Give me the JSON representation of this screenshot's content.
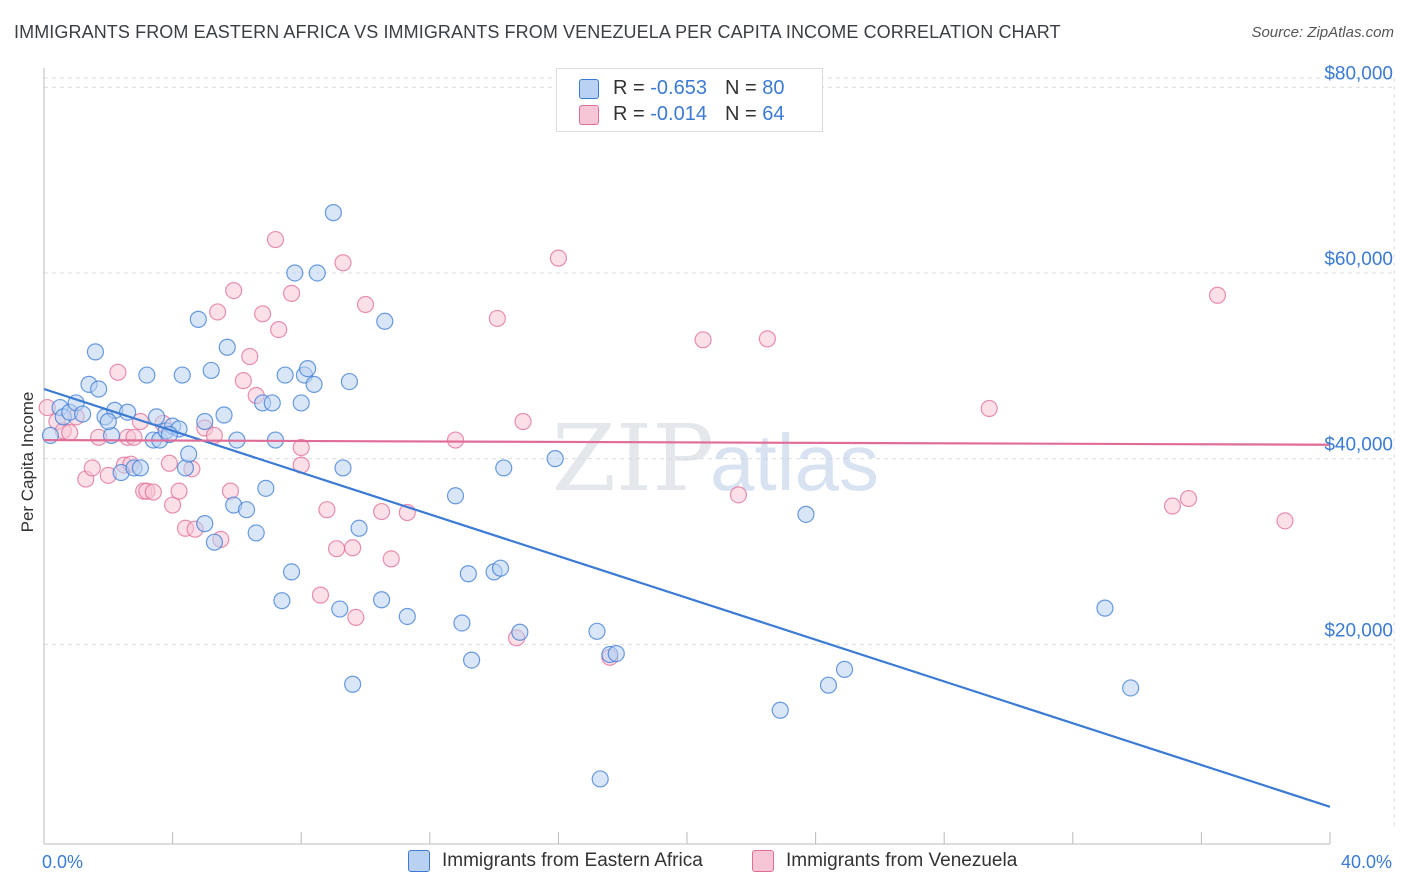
{
  "title": "IMMIGRANTS FROM EASTERN AFRICA VS IMMIGRANTS FROM VENEZUELA PER CAPITA INCOME CORRELATION CHART",
  "source": "Source: ZipAtlas.com",
  "watermark": {
    "zip": "ZIP",
    "atlas": "atlas"
  },
  "colors": {
    "blue": "#3b7bd4",
    "blue_fill": "#b9d2f3",
    "pink": "#e06c98",
    "pink_fill": "#f7c6d6",
    "grid": "#dcdcdc"
  },
  "legend_top": {
    "blue": {
      "r_label": "R = ",
      "r_value": "-0.653",
      "n_label": "N = ",
      "n_value": "80"
    },
    "pink": {
      "r_label": "R = ",
      "r_value": "-0.014",
      "n_label": "N = ",
      "n_value": "64"
    }
  },
  "chart_data": {
    "type": "scatter",
    "title": "IMMIGRANTS FROM EASTERN AFRICA VS IMMIGRANTS FROM VENEZUELA PER CAPITA INCOME CORRELATION CHART",
    "xlabel": "",
    "ylabel": "Per Capita Income",
    "xlim": [
      0,
      40
    ],
    "ylim": [
      0,
      81000
    ],
    "x_tick_labels": [
      "0.0%",
      "40.0%"
    ],
    "y_ticks": [
      20000,
      40000,
      60000,
      80000
    ],
    "y_tick_labels": [
      "$20,000",
      "$40,000",
      "$60,000",
      "$80,000"
    ],
    "grid": true,
    "legend_position": "top-center and bottom",
    "series": [
      {
        "name": "Immigrants from Eastern Africa",
        "color": "#3b7bd4",
        "trend": {
          "x": [
            0,
            40
          ],
          "y": [
            47500,
            2500
          ]
        },
        "points": [
          [
            0.2,
            42500
          ],
          [
            0.5,
            45500
          ],
          [
            0.6,
            44500
          ],
          [
            0.8,
            45000
          ],
          [
            1.0,
            46000
          ],
          [
            1.4,
            48000
          ],
          [
            1.6,
            51500
          ],
          [
            1.7,
            47500
          ],
          [
            1.9,
            44500
          ],
          [
            2.1,
            42500
          ],
          [
            2.2,
            45200
          ],
          [
            2.4,
            38500
          ],
          [
            2.6,
            45000
          ],
          [
            2.8,
            39000
          ],
          [
            3.0,
            39000
          ],
          [
            3.2,
            49000
          ],
          [
            3.4,
            42000
          ],
          [
            3.5,
            44500
          ],
          [
            3.6,
            42000
          ],
          [
            3.8,
            43000
          ],
          [
            4.0,
            43500
          ],
          [
            4.2,
            43200
          ],
          [
            4.3,
            49000
          ],
          [
            4.4,
            39000
          ],
          [
            4.5,
            40500
          ],
          [
            4.8,
            55000
          ],
          [
            5.0,
            44000
          ],
          [
            5.0,
            33000
          ],
          [
            5.2,
            49500
          ],
          [
            5.3,
            31000
          ],
          [
            5.6,
            44700
          ],
          [
            5.7,
            52000
          ],
          [
            5.9,
            35000
          ],
          [
            6.0,
            42000
          ],
          [
            6.3,
            34500
          ],
          [
            6.6,
            32000
          ],
          [
            6.8,
            46000
          ],
          [
            6.9,
            36800
          ],
          [
            7.1,
            46000
          ],
          [
            7.2,
            42000
          ],
          [
            7.4,
            24700
          ],
          [
            7.5,
            49000
          ],
          [
            7.7,
            27800
          ],
          [
            7.8,
            60000
          ],
          [
            8.0,
            46000
          ],
          [
            8.1,
            49000
          ],
          [
            8.2,
            49700
          ],
          [
            8.4,
            48000
          ],
          [
            8.5,
            60000
          ],
          [
            9.0,
            66500
          ],
          [
            9.2,
            23800
          ],
          [
            9.3,
            39000
          ],
          [
            9.5,
            48300
          ],
          [
            9.6,
            15700
          ],
          [
            9.8,
            32500
          ],
          [
            10.5,
            24800
          ],
          [
            10.6,
            54800
          ],
          [
            11.3,
            23000
          ],
          [
            12.8,
            36000
          ],
          [
            13.0,
            22300
          ],
          [
            13.2,
            27600
          ],
          [
            13.3,
            18300
          ],
          [
            14.0,
            27800
          ],
          [
            14.2,
            28200
          ],
          [
            14.3,
            39000
          ],
          [
            14.8,
            21300
          ],
          [
            15.9,
            40000
          ],
          [
            17.2,
            21400
          ],
          [
            17.6,
            18900
          ],
          [
            17.8,
            19000
          ],
          [
            17.3,
            5500
          ],
          [
            22.9,
            12900
          ],
          [
            23.7,
            34000
          ],
          [
            24.4,
            15600
          ],
          [
            24.9,
            17300
          ],
          [
            33.0,
            23900
          ],
          [
            33.8,
            15300
          ],
          [
            1.2,
            44800
          ],
          [
            2.0,
            44000
          ],
          [
            3.9,
            42600
          ]
        ]
      },
      {
        "name": "Immigrants from Venezuela",
        "color": "#e06c98",
        "trend": {
          "x": [
            0,
            40
          ],
          "y": [
            42000,
            41500
          ]
        },
        "points": [
          [
            0.1,
            45500
          ],
          [
            0.4,
            44000
          ],
          [
            0.6,
            43000
          ],
          [
            0.8,
            42800
          ],
          [
            1.0,
            44500
          ],
          [
            1.3,
            37800
          ],
          [
            1.5,
            39000
          ],
          [
            1.7,
            42300
          ],
          [
            2.0,
            38200
          ],
          [
            2.3,
            49300
          ],
          [
            2.5,
            39300
          ],
          [
            2.6,
            42300
          ],
          [
            2.7,
            39400
          ],
          [
            2.8,
            42300
          ],
          [
            3.0,
            44000
          ],
          [
            3.1,
            36500
          ],
          [
            3.2,
            36500
          ],
          [
            3.4,
            36400
          ],
          [
            3.7,
            43800
          ],
          [
            3.9,
            39500
          ],
          [
            4.0,
            35000
          ],
          [
            4.2,
            36500
          ],
          [
            4.4,
            32500
          ],
          [
            4.6,
            38900
          ],
          [
            4.7,
            32400
          ],
          [
            5.0,
            43300
          ],
          [
            5.3,
            42500
          ],
          [
            5.4,
            55800
          ],
          [
            5.5,
            31300
          ],
          [
            5.8,
            36500
          ],
          [
            5.9,
            58100
          ],
          [
            6.2,
            48400
          ],
          [
            6.4,
            51000
          ],
          [
            6.6,
            46800
          ],
          [
            6.8,
            55600
          ],
          [
            7.2,
            63600
          ],
          [
            7.3,
            53900
          ],
          [
            7.7,
            57800
          ],
          [
            8.0,
            41200
          ],
          [
            8.0,
            39300
          ],
          [
            8.6,
            25300
          ],
          [
            8.8,
            34500
          ],
          [
            9.1,
            30300
          ],
          [
            9.3,
            61100
          ],
          [
            9.6,
            30400
          ],
          [
            9.7,
            22900
          ],
          [
            10.0,
            56600
          ],
          [
            10.5,
            34300
          ],
          [
            10.8,
            29200
          ],
          [
            11.3,
            34200
          ],
          [
            12.8,
            42000
          ],
          [
            14.1,
            55100
          ],
          [
            14.7,
            20700
          ],
          [
            14.9,
            44000
          ],
          [
            16.0,
            61600
          ],
          [
            17.6,
            18600
          ],
          [
            20.5,
            52800
          ],
          [
            21.6,
            36100
          ],
          [
            22.5,
            52900
          ],
          [
            29.4,
            45400
          ],
          [
            35.1,
            34900
          ],
          [
            35.6,
            35700
          ],
          [
            36.5,
            57600
          ],
          [
            38.6,
            33300
          ]
        ]
      }
    ]
  },
  "legend_bottom": {
    "blue_label": "Immigrants from Eastern Africa",
    "pink_label": "Immigrants from Venezuela"
  }
}
